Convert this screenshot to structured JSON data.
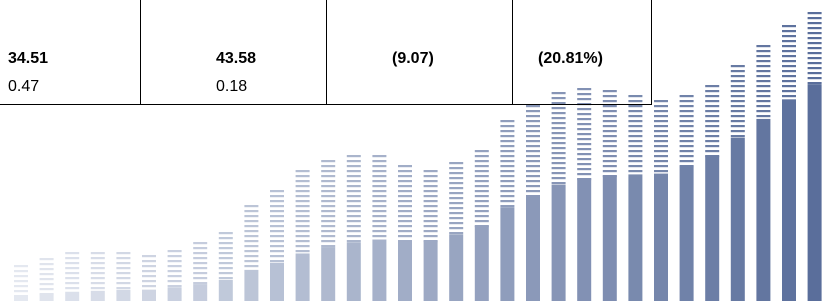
{
  "table": {
    "rows": [
      [
        "34.51",
        "43.58",
        "(9.07)",
        "(20.81%)"
      ],
      [
        "0.47",
        "0.18"
      ]
    ]
  }
}
